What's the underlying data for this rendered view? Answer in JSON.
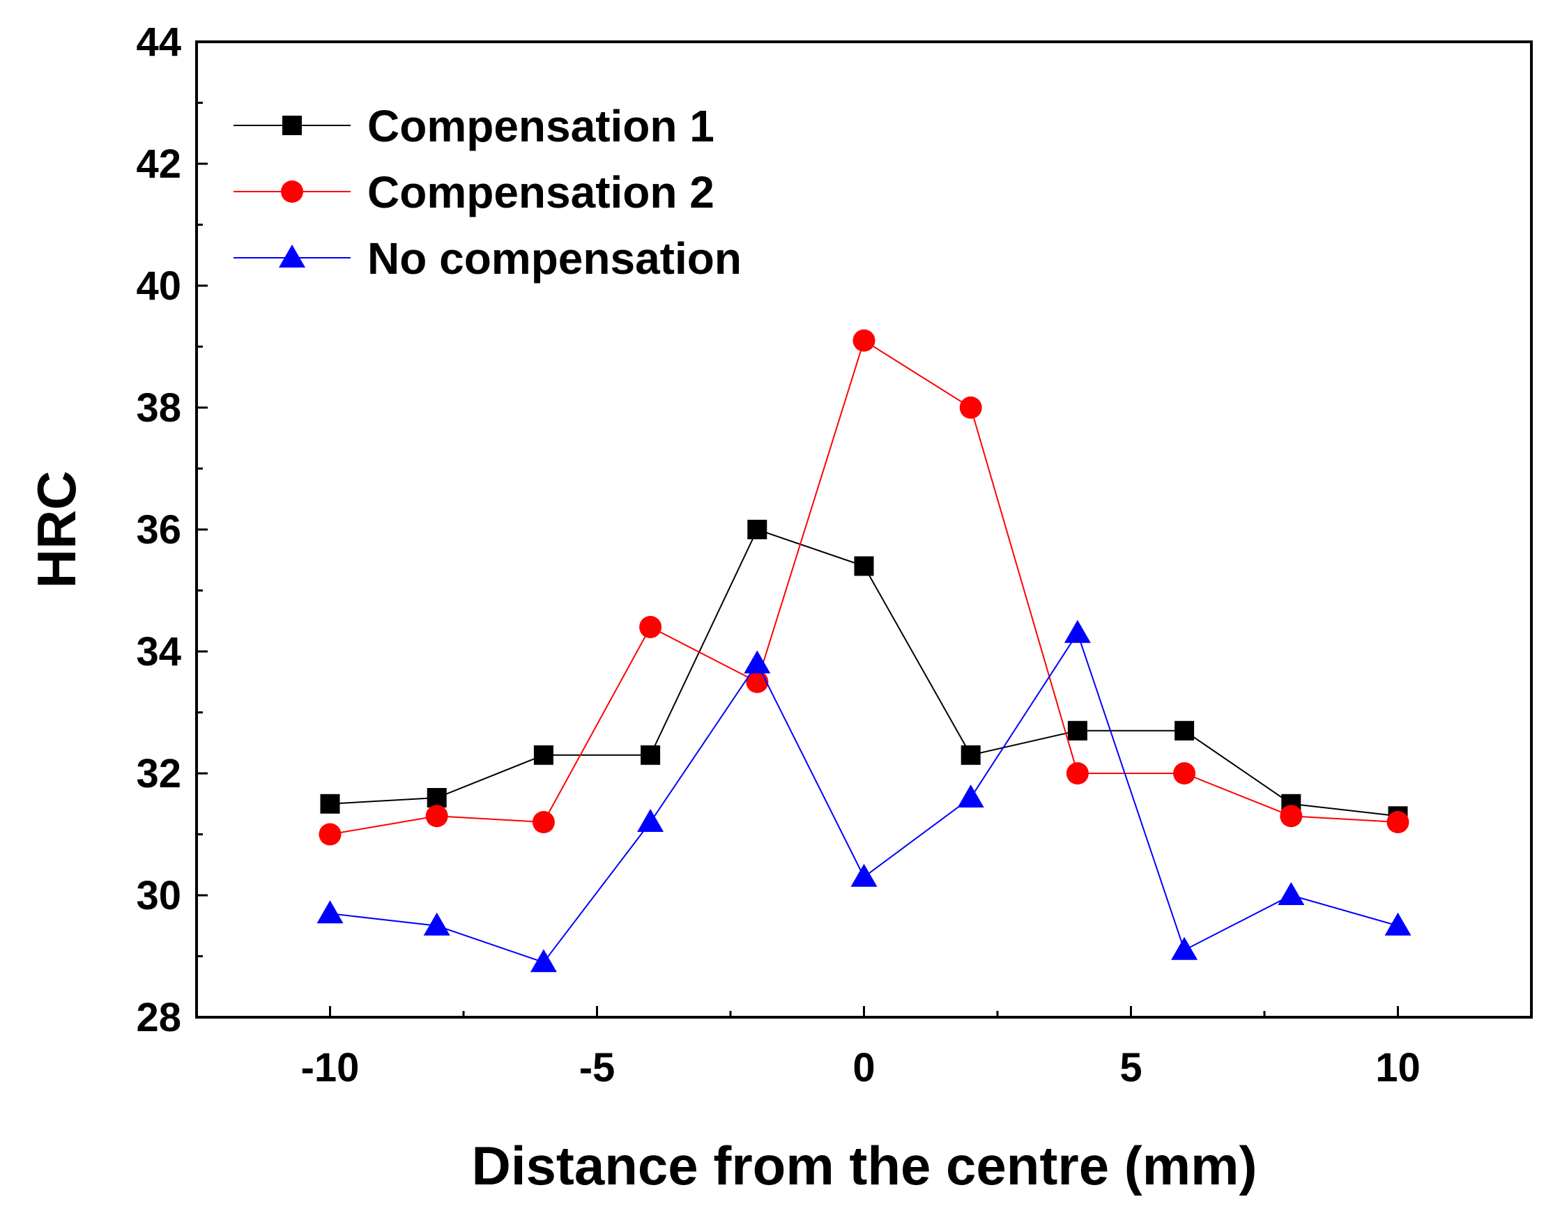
{
  "chart_data": {
    "type": "line",
    "title": "",
    "xlabel": "Distance from the centre (mm)",
    "ylabel": "HRC",
    "xlim": [
      -12.5,
      12.5
    ],
    "ylim": [
      28,
      44
    ],
    "x_ticks": [
      -10,
      -5,
      0,
      5,
      10
    ],
    "y_ticks": [
      28,
      30,
      32,
      34,
      36,
      38,
      40,
      42,
      44
    ],
    "grid": false,
    "legend_position": "top-left",
    "x": [
      -10,
      -8,
      -6,
      -4,
      -2,
      0,
      2,
      4,
      6,
      8,
      10
    ],
    "series": [
      {
        "name": "Compensation 1",
        "color": "#000000",
        "marker": "square",
        "values": [
          31.5,
          31.6,
          32.3,
          32.3,
          36.0,
          35.4,
          32.3,
          32.7,
          32.7,
          31.5,
          31.3
        ]
      },
      {
        "name": "Compensation 2",
        "color": "#ff0000",
        "marker": "circle",
        "values": [
          31.0,
          31.3,
          31.2,
          34.4,
          33.5,
          39.1,
          38.0,
          32.0,
          32.0,
          31.3,
          31.2
        ]
      },
      {
        "name": "No compensation",
        "color": "#0000ff",
        "marker": "triangle",
        "values": [
          29.7,
          29.5,
          28.9,
          31.2,
          33.8,
          30.3,
          31.6,
          34.3,
          29.1,
          30.0,
          29.5
        ]
      }
    ]
  }
}
